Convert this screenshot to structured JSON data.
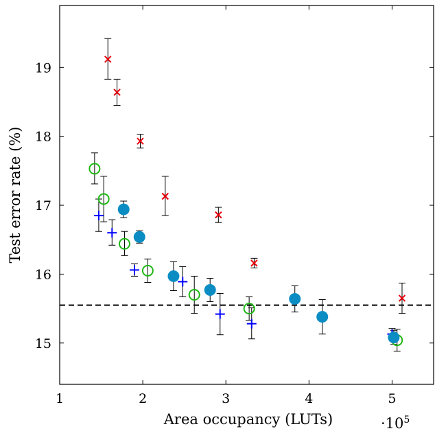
{
  "chart_data": {
    "type": "scatter",
    "title": "",
    "xlabel": "Area occupancy (LUTs)",
    "ylabel": "Test error rate (%)",
    "x_multiplier_label": "·10",
    "x_multiplier_exp": "5",
    "xlim": [
      1,
      5.5
    ],
    "ylim": [
      14.4,
      19.9
    ],
    "xticks": [
      1,
      2,
      3,
      4,
      5
    ],
    "yticks": [
      15,
      16,
      17,
      18,
      19
    ],
    "grid": false,
    "legend": "none",
    "reference_line": {
      "y": 15.55,
      "style": "dashed",
      "color": "#000000"
    },
    "series": [
      {
        "marker": "cross",
        "color": "#e8000b",
        "points": [
          {
            "x": 1.58,
            "y": 19.12,
            "err_low": 18.83,
            "err_high": 19.42
          },
          {
            "x": 1.69,
            "y": 18.64,
            "err_low": 18.45,
            "err_high": 18.83
          },
          {
            "x": 1.97,
            "y": 17.93,
            "err_low": 17.83,
            "err_high": 18.03
          },
          {
            "x": 2.27,
            "y": 17.13,
            "err_low": 16.85,
            "err_high": 17.42
          },
          {
            "x": 2.91,
            "y": 16.86,
            "err_low": 16.75,
            "err_high": 16.97
          },
          {
            "x": 3.34,
            "y": 16.16,
            "err_low": 16.09,
            "err_high": 16.23
          },
          {
            "x": 5.12,
            "y": 15.65,
            "err_low": 15.43,
            "err_high": 15.87
          }
        ]
      },
      {
        "marker": "circle-open",
        "color": "#1fb714",
        "points": [
          {
            "x": 1.42,
            "y": 17.53,
            "err_low": 17.31,
            "err_high": 17.76
          },
          {
            "x": 1.53,
            "y": 17.09,
            "err_low": 16.76,
            "err_high": 17.42
          },
          {
            "x": 1.78,
            "y": 16.44,
            "err_low": 16.27,
            "err_high": 16.62
          },
          {
            "x": 2.06,
            "y": 16.05,
            "err_low": 15.88,
            "err_high": 16.22
          },
          {
            "x": 2.62,
            "y": 15.7,
            "err_low": 15.43,
            "err_high": 15.97
          },
          {
            "x": 3.28,
            "y": 15.5,
            "err_low": 15.33,
            "err_high": 15.67
          },
          {
            "x": 5.06,
            "y": 15.04,
            "err_low": 14.88,
            "err_high": 15.2
          }
        ]
      },
      {
        "marker": "plus",
        "color": "#0000ff",
        "points": [
          {
            "x": 1.47,
            "y": 16.85,
            "err_low": 16.62,
            "err_high": 17.09
          },
          {
            "x": 1.63,
            "y": 16.6,
            "err_low": 16.42,
            "err_high": 16.79
          },
          {
            "x": 1.9,
            "y": 16.06,
            "err_low": 15.97,
            "err_high": 16.15
          },
          {
            "x": 2.48,
            "y": 15.89,
            "err_low": 15.67,
            "err_high": 16.11
          },
          {
            "x": 2.93,
            "y": 15.42,
            "err_low": 15.12,
            "err_high": 15.72
          },
          {
            "x": 3.31,
            "y": 15.28,
            "err_low": 15.06,
            "err_high": 15.51
          },
          {
            "x": 5.0,
            "y": 15.13,
            "err_low": 15.05,
            "err_high": 15.21
          }
        ]
      },
      {
        "marker": "circle-filled",
        "color": "#0b8dc4",
        "points": [
          {
            "x": 1.77,
            "y": 16.94,
            "err_low": 16.82,
            "err_high": 17.06
          },
          {
            "x": 1.96,
            "y": 16.54,
            "err_low": 16.45,
            "err_high": 16.63
          },
          {
            "x": 2.37,
            "y": 15.97,
            "err_low": 15.76,
            "err_high": 16.18
          },
          {
            "x": 2.81,
            "y": 15.77,
            "err_low": 15.6,
            "err_high": 15.94
          },
          {
            "x": 3.83,
            "y": 15.64,
            "err_low": 15.45,
            "err_high": 15.83
          },
          {
            "x": 4.16,
            "y": 15.38,
            "err_low": 15.13,
            "err_high": 15.63
          },
          {
            "x": 5.02,
            "y": 15.08,
            "err_low": 14.98,
            "err_high": 15.18
          }
        ]
      }
    ]
  }
}
